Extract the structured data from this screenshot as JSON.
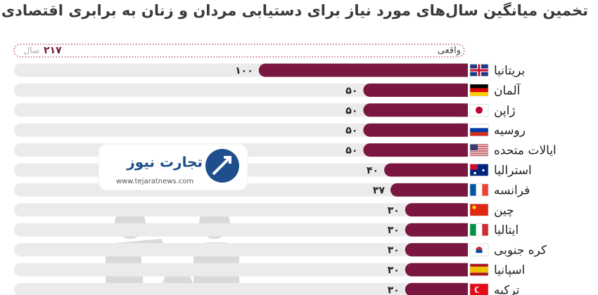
{
  "chart_data": {
    "type": "bar",
    "orientation": "horizontal",
    "title": "تخمین میانگین سال‌های مورد نیاز برای دستیابی مردان و زنان به برابری اقتصادی",
    "reference": {
      "label": "واقعی",
      "value": 217,
      "value_label": "۲۱۷",
      "unit": "سال"
    },
    "categories": [
      "بریتانیا",
      "آلمان",
      "ژاپن",
      "روسیه",
      "ایالات متحده",
      "استرالیا",
      "فرانسه",
      "چین",
      "ایتالیا",
      "کره جنوبی",
      "اسپانیا",
      "ترکیه"
    ],
    "values": [
      100,
      50,
      50,
      50,
      50,
      40,
      37,
      30,
      30,
      30,
      30,
      30
    ],
    "value_labels": [
      "۱۰۰",
      "۵۰",
      "۵۰",
      "۵۰",
      "۵۰",
      "۴۰",
      "۳۷",
      "۳۰",
      "۳۰",
      "۳۰",
      "۳۰",
      "۳۰"
    ],
    "color": "#7a1740",
    "xlim": [
      0,
      217
    ],
    "watermark": {
      "name": "تجارت نیوز",
      "url": "www.tejaratnews.com"
    }
  }
}
